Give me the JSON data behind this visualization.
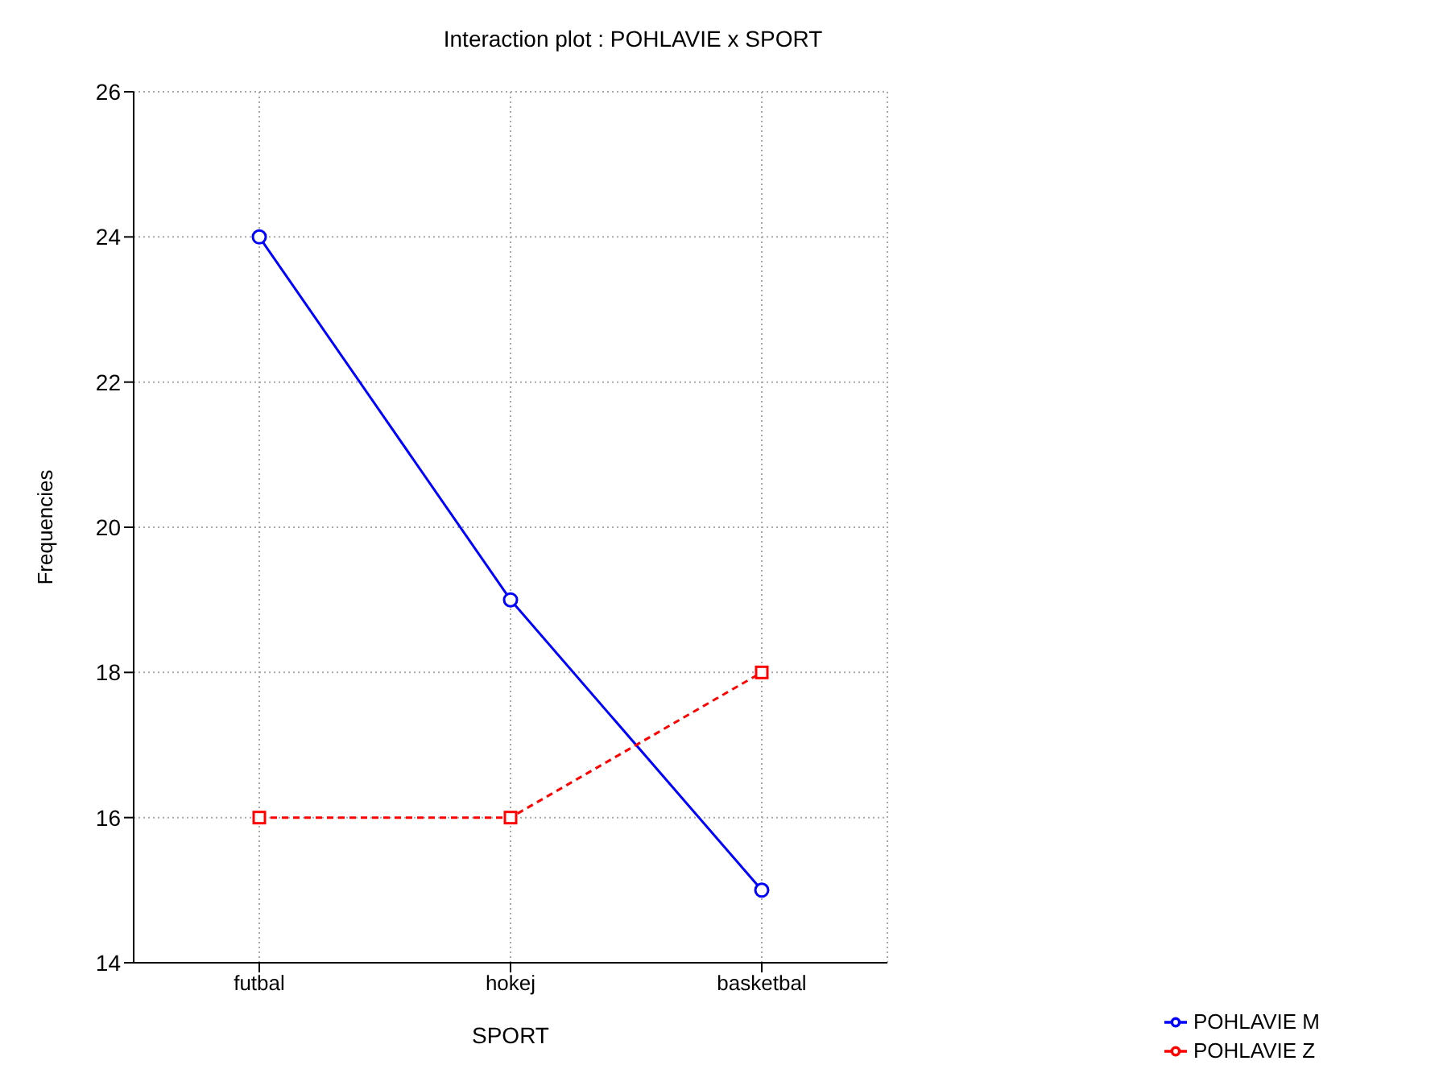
{
  "chart_data": {
    "type": "line",
    "title": "Interaction plot : POHLAVIE x SPORT",
    "xlabel": "SPORT",
    "ylabel": "Frequencies",
    "categories": [
      "futbal",
      "hokej",
      "basketbal"
    ],
    "series": [
      {
        "name": "POHLAVIE M",
        "color": "#0000ff",
        "values": [
          24,
          19,
          15
        ],
        "marker": "circle",
        "line_style": "solid"
      },
      {
        "name": "POHLAVIE Z",
        "color": "#ff0000",
        "values": [
          16,
          16,
          18
        ],
        "marker": "square",
        "line_style": "dashed"
      }
    ],
    "ylim": [
      14,
      26
    ],
    "yticks": [
      14,
      16,
      18,
      20,
      22,
      24,
      26
    ],
    "grid": true,
    "legend": "bottom right"
  }
}
